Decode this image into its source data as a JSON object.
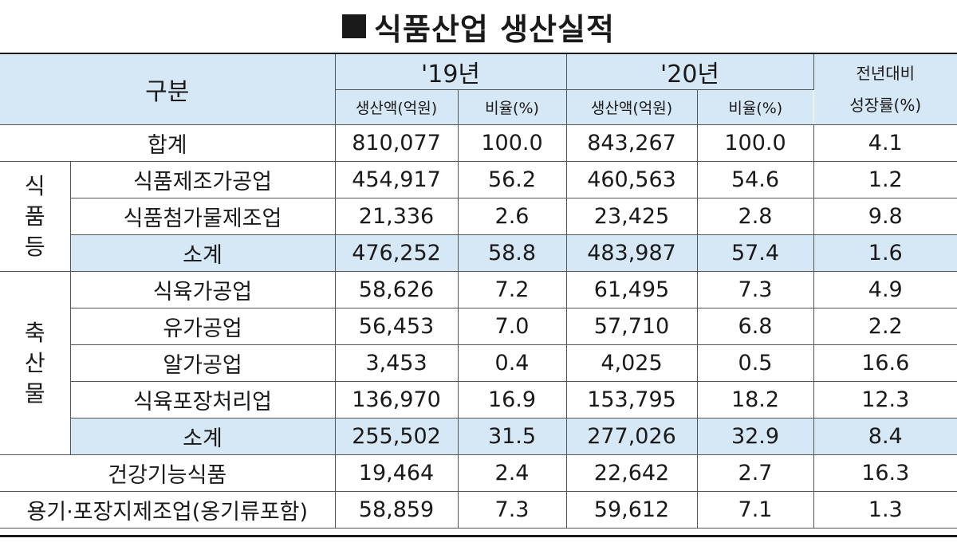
{
  "title": "식품산업 생산실적",
  "header": {
    "category": "구분",
    "year1": "'19년",
    "year2": "'20년",
    "growth_line1": "전년대비",
    "growth_line2": "성장률(%)",
    "production": "생산액(억원)",
    "ratio": "비율(%)"
  },
  "groups": {
    "food_line1": "식",
    "food_line2": "품",
    "food_line3": "등",
    "livestock_line1": "축",
    "livestock_line2": "산",
    "livestock_line3": "물"
  },
  "rows": {
    "total": {
      "label": "합계",
      "p19": "810,077",
      "r19": "100.0",
      "p20": "843,267",
      "r20": "100.0",
      "g": "4.1"
    },
    "food_processing": {
      "label": "식품제조가공업",
      "p19": "454,917",
      "r19": "56.2",
      "p20": "460,563",
      "r20": "54.6",
      "g": "1.2"
    },
    "food_additive": {
      "label": "식품첨가물제조업",
      "p19": "21,336",
      "r19": "2.6",
      "p20": "23,425",
      "r20": "2.8",
      "g": "9.8"
    },
    "food_subtotal": {
      "label": "소계",
      "p19": "476,252",
      "r19": "58.8",
      "p20": "483,987",
      "r20": "57.4",
      "g": "1.6"
    },
    "meat": {
      "label": "식육가공업",
      "p19": "58,626",
      "r19": "7.2",
      "p20": "61,495",
      "r20": "7.3",
      "g": "4.9"
    },
    "milk": {
      "label": "유가공업",
      "p19": "56,453",
      "r19": "7.0",
      "p20": "57,710",
      "r20": "6.8",
      "g": "2.2"
    },
    "egg": {
      "label": "알가공업",
      "p19": "3,453",
      "r19": "0.4",
      "p20": "4,025",
      "r20": "0.5",
      "g": "16.6"
    },
    "meat_packaging": {
      "label": "식육포장처리업",
      "p19": "136,970",
      "r19": "16.9",
      "p20": "153,795",
      "r20": "18.2",
      "g": "12.3"
    },
    "livestock_subtotal": {
      "label": "소계",
      "p19": "255,502",
      "r19": "31.5",
      "p20": "277,026",
      "r20": "32.9",
      "g": "8.4"
    },
    "health_food": {
      "label": "건강기능식품",
      "p19": "19,464",
      "r19": "2.4",
      "p20": "22,642",
      "r20": "2.7",
      "g": "16.3"
    },
    "container": {
      "label": "용기·포장지제조업(옹기류포함)",
      "p19": "58,859",
      "r19": "7.3",
      "p20": "59,612",
      "r20": "7.1",
      "g": "1.3"
    }
  }
}
